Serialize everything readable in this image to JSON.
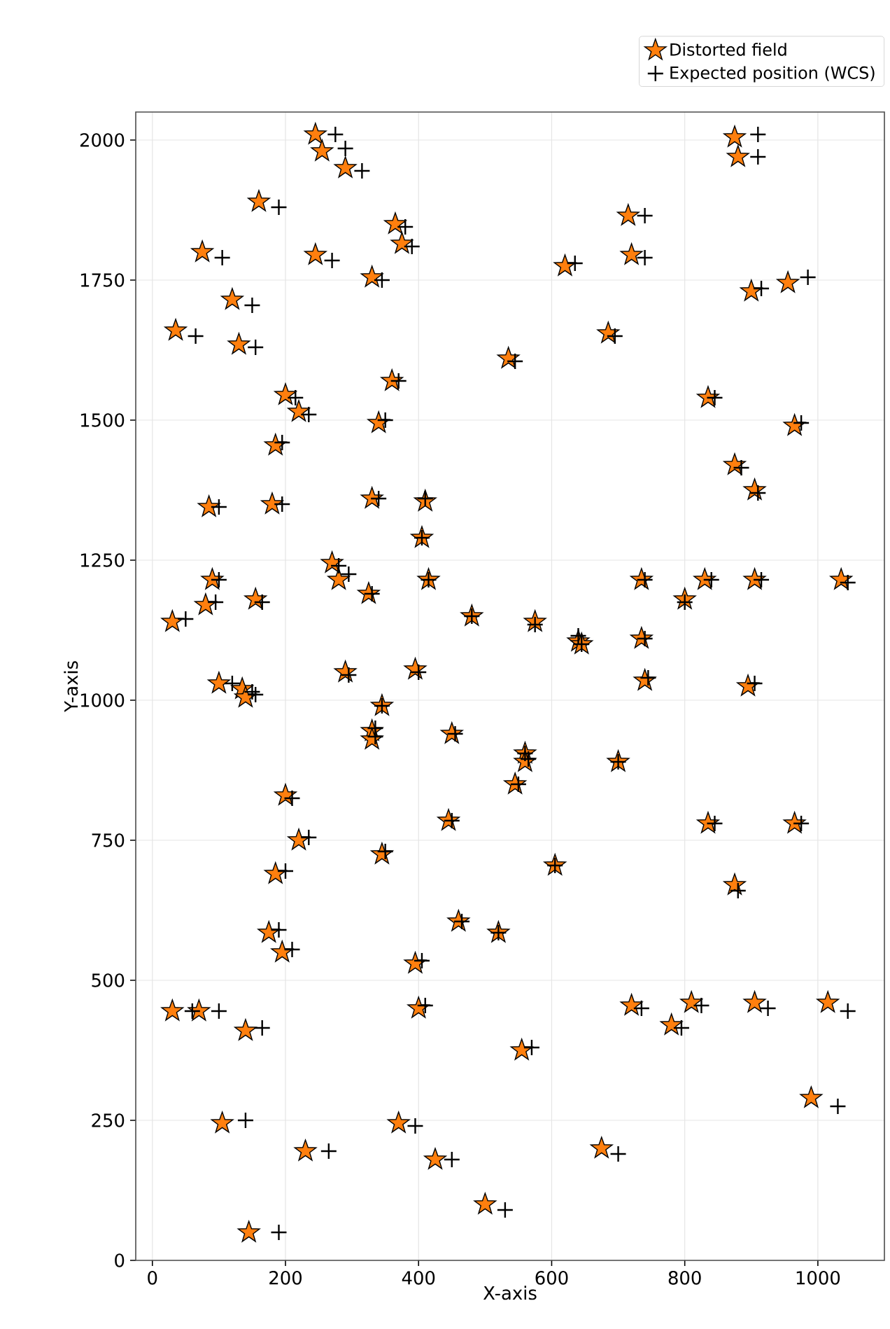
{
  "chart_data": {
    "type": "scatter",
    "xlabel": "X-axis",
    "ylabel": "Y-axis",
    "xlim": [
      -25,
      1100
    ],
    "ylim": [
      0,
      2050
    ],
    "xticks": [
      0,
      200,
      400,
      600,
      800,
      1000
    ],
    "yticks": [
      0,
      250,
      500,
      750,
      1000,
      1250,
      1500,
      1750,
      2000
    ],
    "grid": true,
    "legend": "top right",
    "series": [
      {
        "name": "Distorted field",
        "color": "#ff7f0e",
        "marker": "star",
        "x": [
          245,
          255,
          290,
          160,
          75,
          245,
          330,
          365,
          375,
          120,
          35,
          130,
          535,
          620,
          715,
          720,
          685,
          875,
          880,
          900,
          955,
          835,
          965,
          875,
          905,
          200,
          220,
          185,
          360,
          340,
          85,
          180,
          330,
          410,
          405,
          270,
          280,
          90,
          80,
          30,
          155,
          325,
          415,
          480,
          575,
          640,
          645,
          735,
          735,
          740,
          800,
          830,
          905,
          1035,
          895,
          290,
          395,
          100,
          135,
          140,
          345,
          330,
          330,
          450,
          560,
          545,
          560,
          700,
          200,
          220,
          185,
          345,
          445,
          605,
          835,
          965,
          875,
          175,
          195,
          460,
          520,
          395,
          400,
          30,
          70,
          140,
          720,
          780,
          810,
          905,
          1015,
          990,
          555,
          105,
          230,
          370,
          425,
          675,
          500,
          145
        ],
        "values": [
          2010,
          1980,
          1950,
          1890,
          1800,
          1795,
          1755,
          1850,
          1815,
          1715,
          1660,
          1635,
          1610,
          1775,
          1865,
          1795,
          1655,
          2005,
          1970,
          1730,
          1745,
          1540,
          1490,
          1420,
          1375,
          1545,
          1515,
          1455,
          1570,
          1495,
          1345,
          1350,
          1360,
          1355,
          1290,
          1245,
          1215,
          1215,
          1170,
          1140,
          1180,
          1190,
          1215,
          1150,
          1140,
          1105,
          1100,
          1215,
          1110,
          1035,
          1180,
          1215,
          1215,
          1215,
          1025,
          1050,
          1055,
          1030,
          1020,
          1005,
          990,
          945,
          930,
          940,
          905,
          850,
          890,
          890,
          830,
          750,
          690,
          725,
          785,
          705,
          780,
          780,
          670,
          585,
          550,
          605,
          585,
          530,
          450,
          445,
          445,
          410,
          455,
          420,
          460,
          460,
          460,
          290,
          375,
          245,
          195,
          245,
          180,
          200,
          100,
          50
        ]
      },
      {
        "name": "Expected position (WCS)",
        "color": "#000000",
        "marker": "cross",
        "x": [
          275,
          290,
          315,
          190,
          105,
          270,
          345,
          380,
          390,
          150,
          65,
          155,
          545,
          635,
          740,
          740,
          695,
          910,
          910,
          915,
          985,
          845,
          975,
          885,
          910,
          215,
          235,
          195,
          370,
          350,
          100,
          195,
          340,
          410,
          405,
          280,
          295,
          100,
          95,
          50,
          165,
          330,
          415,
          480,
          575,
          640,
          645,
          740,
          740,
          745,
          800,
          840,
          915,
          1045,
          905,
          295,
          400,
          120,
          150,
          155,
          345,
          335,
          335,
          455,
          560,
          550,
          565,
          700,
          210,
          235,
          200,
          350,
          450,
          605,
          845,
          975,
          880,
          190,
          210,
          465,
          520,
          405,
          410,
          60,
          100,
          165,
          735,
          795,
          825,
          925,
          1045,
          1030,
          570,
          140,
          265,
          395,
          450,
          700,
          530,
          190
        ],
        "values": [
          2010,
          1985,
          1945,
          1880,
          1790,
          1785,
          1750,
          1845,
          1810,
          1705,
          1650,
          1630,
          1605,
          1780,
          1865,
          1790,
          1650,
          2010,
          1970,
          1735,
          1755,
          1540,
          1495,
          1415,
          1370,
          1540,
          1510,
          1460,
          1570,
          1500,
          1345,
          1350,
          1360,
          1360,
          1290,
          1240,
          1225,
          1215,
          1175,
          1145,
          1175,
          1190,
          1215,
          1150,
          1135,
          1115,
          1100,
          1215,
          1110,
          1040,
          1175,
          1215,
          1215,
          1210,
          1030,
          1045,
          1050,
          1030,
          1015,
          1010,
          990,
          950,
          935,
          940,
          905,
          850,
          895,
          890,
          825,
          755,
          695,
          730,
          785,
          705,
          780,
          780,
          660,
          590,
          555,
          605,
          585,
          535,
          455,
          445,
          445,
          415,
          450,
          415,
          455,
          450,
          445,
          275,
          380,
          250,
          195,
          240,
          180,
          190,
          90,
          50
        ]
      }
    ]
  }
}
